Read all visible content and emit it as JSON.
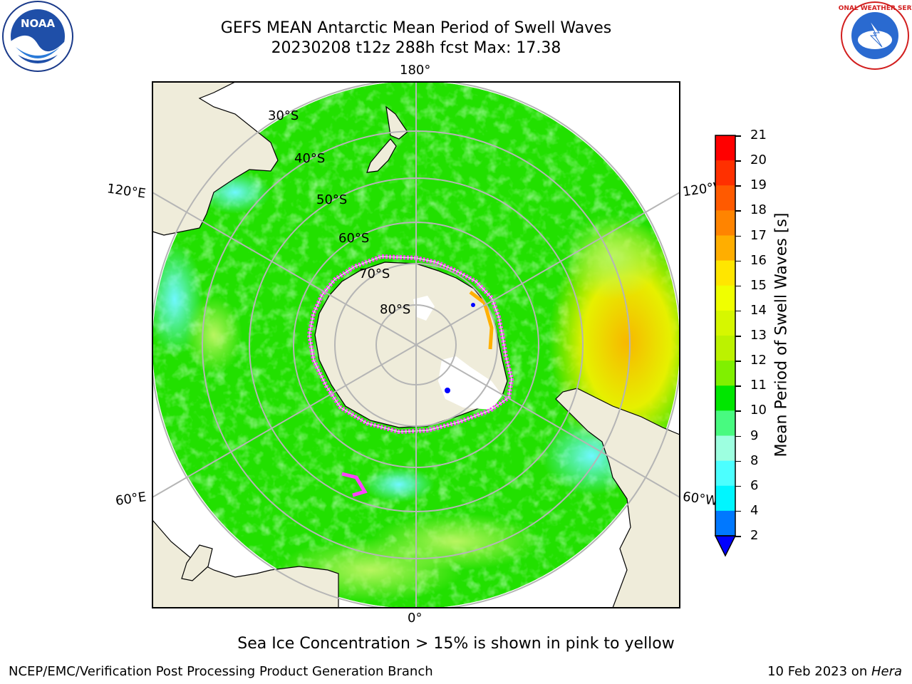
{
  "header": {
    "title_line1": "GEFS MEAN Antarctic Mean Period of Swell Waves",
    "title_line2": "20230208 t12z 288h fcst   Max: 17.38"
  },
  "logos": {
    "left_logo_text": "NOAA",
    "right_logo_text": "NATIONAL WEATHER SERVICE"
  },
  "map": {
    "longitude_labels": {
      "top": "180°",
      "bottom": "0°",
      "upper_left": "120°E",
      "upper_right": "120°W",
      "lower_left": "60°E",
      "lower_right": "60°W"
    },
    "latitude_labels": [
      "30°S",
      "40°S",
      "50°S",
      "60°S",
      "70°S",
      "80°S"
    ],
    "colors": {
      "land": "#efecda",
      "ocean_base": "#22e000",
      "ice_edge": "#ff40ff",
      "grid": "#b5b5b5"
    }
  },
  "colorbar": {
    "title": "Mean Period of Swell Waves [s]",
    "ticks": [
      "21",
      "20",
      "19",
      "18",
      "17",
      "16",
      "15",
      "14",
      "13",
      "12",
      "11",
      "10",
      "9",
      "8",
      "6",
      "4",
      "2"
    ],
    "colors": [
      "#ff0000",
      "#ff3000",
      "#ff5a00",
      "#ff8400",
      "#ffae00",
      "#ffe600",
      "#f0ff00",
      "#d6f700",
      "#bcf200",
      "#80f000",
      "#00e600",
      "#48fa80",
      "#9dffe0",
      "#4cffff",
      "#00f6ff",
      "#0078ff",
      "#0000ff"
    ]
  },
  "notes": {
    "sea_ice": "Sea Ice Concentration > 15% is shown in pink to yellow"
  },
  "footer": {
    "left": "NCEP/EMC/Verification Post Processing Product Generation Branch",
    "right_date": "10 Feb 2023 on ",
    "right_machine": "Hera"
  }
}
